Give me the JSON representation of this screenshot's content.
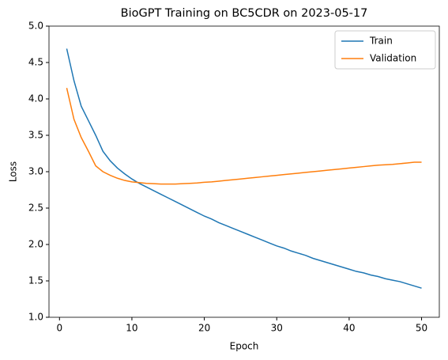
{
  "chart_data": {
    "type": "line",
    "title": "BioGPT Training on BC5CDR on 2023-05-17",
    "xlabel": "Epoch",
    "ylabel": "Loss",
    "x": [
      1,
      2,
      3,
      4,
      5,
      6,
      7,
      8,
      9,
      10,
      11,
      12,
      13,
      14,
      15,
      16,
      17,
      18,
      19,
      20,
      21,
      22,
      23,
      24,
      25,
      26,
      27,
      28,
      29,
      30,
      31,
      32,
      33,
      34,
      35,
      36,
      37,
      38,
      39,
      40,
      41,
      42,
      43,
      44,
      45,
      46,
      47,
      48,
      49,
      50
    ],
    "series": [
      {
        "name": "Train",
        "color": "#1f77b4",
        "values": [
          4.69,
          4.25,
          3.9,
          3.7,
          3.5,
          3.28,
          3.15,
          3.05,
          2.97,
          2.9,
          2.84,
          2.79,
          2.74,
          2.69,
          2.64,
          2.59,
          2.54,
          2.49,
          2.44,
          2.39,
          2.35,
          2.3,
          2.26,
          2.22,
          2.18,
          2.14,
          2.1,
          2.06,
          2.02,
          1.98,
          1.95,
          1.91,
          1.88,
          1.85,
          1.81,
          1.78,
          1.75,
          1.72,
          1.69,
          1.66,
          1.63,
          1.61,
          1.58,
          1.56,
          1.53,
          1.51,
          1.49,
          1.46,
          1.43,
          1.4
        ]
      },
      {
        "name": "Validation",
        "color": "#ff7f0e",
        "values": [
          4.15,
          3.72,
          3.47,
          3.28,
          3.08,
          3.0,
          2.95,
          2.91,
          2.88,
          2.86,
          2.85,
          2.84,
          2.835,
          2.83,
          2.83,
          2.83,
          2.835,
          2.84,
          2.845,
          2.855,
          2.86,
          2.87,
          2.88,
          2.89,
          2.9,
          2.91,
          2.92,
          2.93,
          2.94,
          2.95,
          2.96,
          2.97,
          2.98,
          2.99,
          3.0,
          3.01,
          3.02,
          3.03,
          3.04,
          3.05,
          3.06,
          3.07,
          3.08,
          3.09,
          3.095,
          3.1,
          3.11,
          3.12,
          3.13,
          3.13
        ]
      }
    ],
    "xlim": [
      -1.45,
      52.45
    ],
    "xticks": [
      0,
      10,
      20,
      30,
      40,
      50
    ],
    "ylim": [
      1,
      5
    ],
    "yticks": [
      {
        "value": 1,
        "label": "1.0"
      },
      {
        "value": 1.5,
        "label": "1.5"
      },
      {
        "value": 2,
        "label": "2.0"
      },
      {
        "value": 2.5,
        "label": "2.5"
      },
      {
        "value": 3,
        "label": "3.0"
      },
      {
        "value": 3.5,
        "label": "3.5"
      },
      {
        "value": 4,
        "label": "4.0"
      },
      {
        "value": 4.5,
        "label": "4.5"
      },
      {
        "value": 5,
        "label": "5.0"
      }
    ],
    "grid": false,
    "legend": "upper right"
  }
}
